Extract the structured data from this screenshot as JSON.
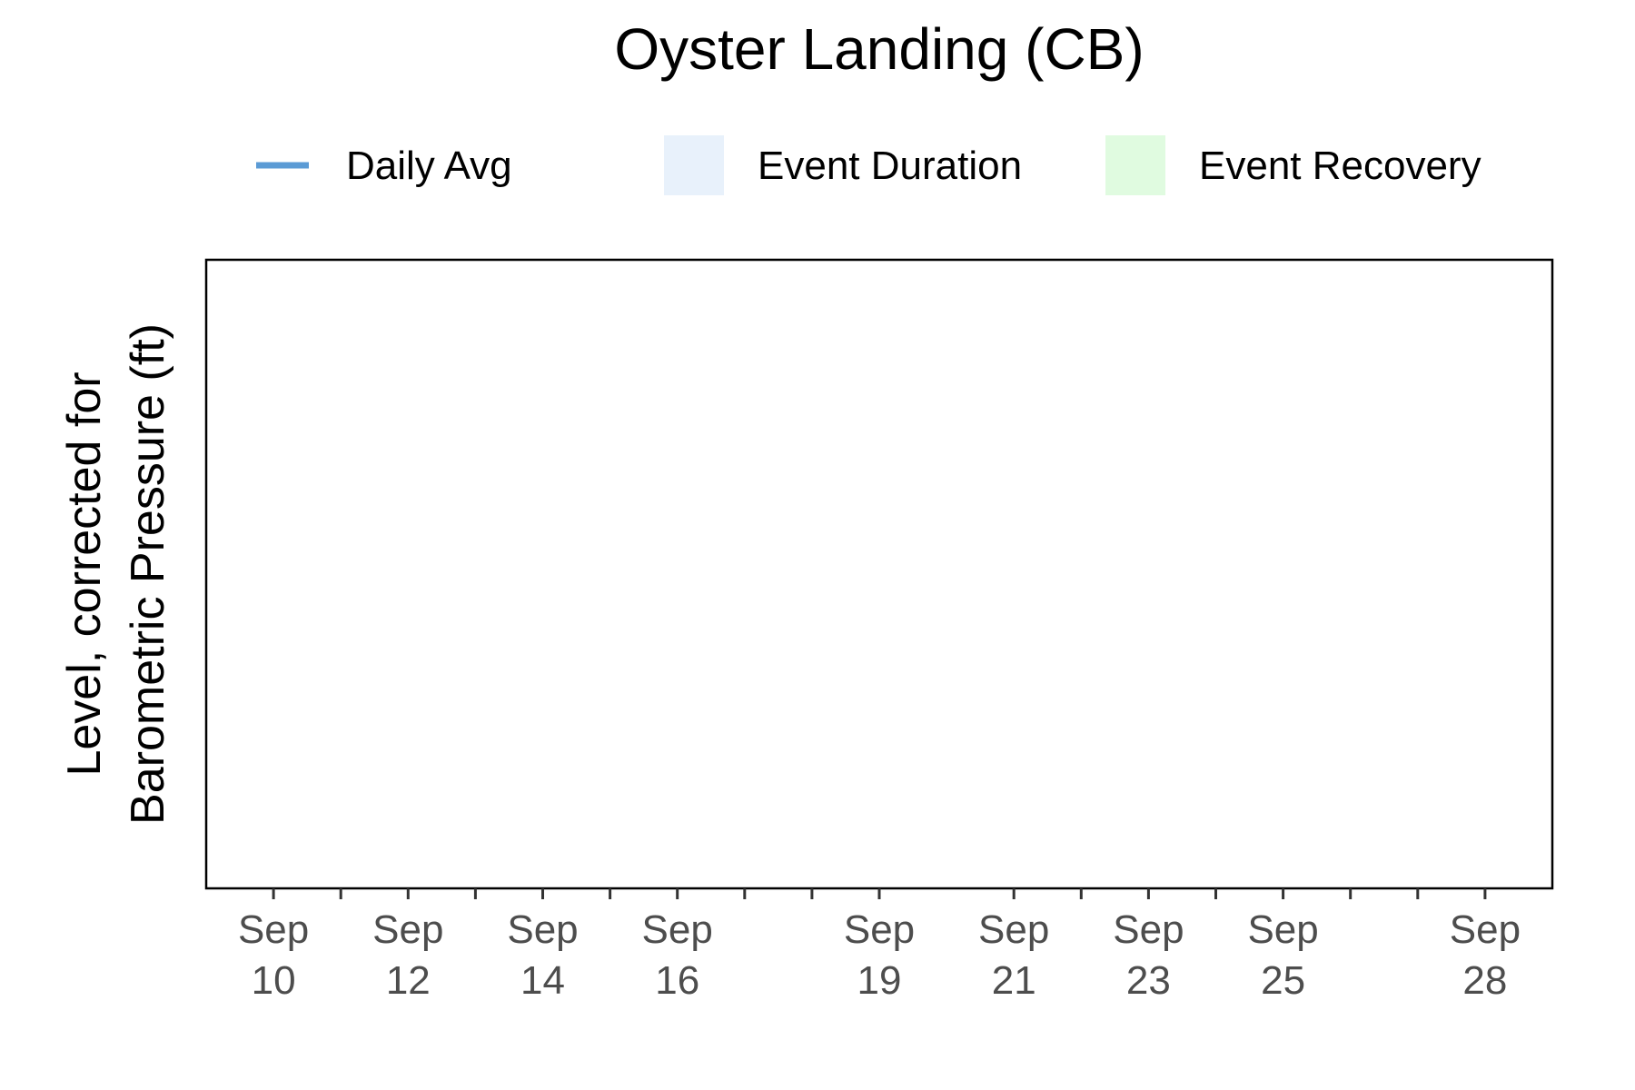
{
  "chart_data": {
    "type": "line",
    "title": "Oyster Landing (CB)",
    "xlabel": "",
    "ylabel": "Level, corrected for Barometric Pressure (ft)",
    "ylabel_lines": [
      "Level, corrected for",
      "Barometric Pressure (ft)"
    ],
    "x_axis": {
      "type": "date",
      "range": [
        "2023-09-09",
        "2023-09-29"
      ],
      "major_ticks": [
        {
          "date": "2023-09-10",
          "label": [
            "Sep",
            "10"
          ]
        },
        {
          "date": "2023-09-12",
          "label": [
            "Sep",
            "12"
          ]
        },
        {
          "date": "2023-09-14",
          "label": [
            "Sep",
            "14"
          ]
        },
        {
          "date": "2023-09-16",
          "label": [
            "Sep",
            "16"
          ]
        },
        {
          "date": "2023-09-19",
          "label": [
            "Sep",
            "19"
          ]
        },
        {
          "date": "2023-09-21",
          "label": [
            "Sep",
            "21"
          ]
        },
        {
          "date": "2023-09-23",
          "label": [
            "Sep",
            "23"
          ]
        },
        {
          "date": "2023-09-25",
          "label": [
            "Sep",
            "25"
          ]
        },
        {
          "date": "2023-09-28",
          "label": [
            "Sep",
            "28"
          ]
        }
      ],
      "minor_ticks": [
        "2023-09-11",
        "2023-09-13",
        "2023-09-15",
        "2023-09-17",
        "2023-09-18",
        "2023-09-22",
        "2023-09-24",
        "2023-09-26",
        "2023-09-27"
      ]
    },
    "legend": {
      "placement": "top",
      "items": [
        {
          "label": "Daily Avg",
          "kind": "line",
          "color": "#5b9bd5"
        },
        {
          "label": "Event Duration",
          "kind": "fill",
          "color": "#e8f1fb"
        },
        {
          "label": "Event Recovery",
          "kind": "fill",
          "color": "#e0fbe0"
        }
      ]
    },
    "series": [
      {
        "name": "Daily Avg",
        "values": []
      }
    ],
    "grid": false
  }
}
